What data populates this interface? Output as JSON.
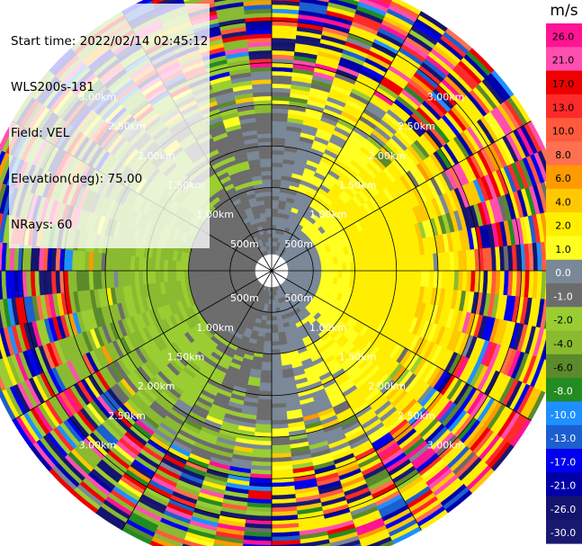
{
  "header": {
    "start_time": "Start time: 2022/02/14 02:45:12",
    "instrument": "WLS200s-181",
    "field": "Field: VEL",
    "elevation": "Elevation(deg): 75.00",
    "nrays": "NRays: 60"
  },
  "chart_data": {
    "type": "heatmap",
    "projection": "polar",
    "field": "VEL",
    "units": "m/s",
    "n_rays": 60,
    "range_rings": [
      "500m",
      "1.00km",
      "1.50km",
      "2.00km",
      "2.50km",
      "3.00km"
    ],
    "range_rings_km": [
      0.5,
      1.0,
      1.5,
      2.0,
      2.5,
      3.0
    ],
    "max_range_km": 3.6,
    "spokes_deg": [
      0,
      30,
      60,
      90,
      120,
      150,
      180,
      210,
      240,
      270,
      300,
      330
    ],
    "colorbar": {
      "title": "m/s",
      "tick_labels": [
        "26.0",
        "21.0",
        "17.0",
        "13.0",
        "10.0",
        "8.0",
        "6.0",
        "4.0",
        "2.0",
        "1.0",
        "0.0",
        "-1.0",
        "-2.0",
        "-4.0",
        "-6.0",
        "-8.0",
        "-10.0",
        "-13.0",
        "-17.0",
        "-21.0",
        "-26.0",
        "-30.0"
      ],
      "levels": [
        {
          "min": 26,
          "max": 30,
          "color": "#ff1493"
        },
        {
          "min": 21,
          "max": 26,
          "color": "#ff4fb0"
        },
        {
          "min": 17,
          "max": 21,
          "color": "#ee0000"
        },
        {
          "min": 13,
          "max": 17,
          "color": "#ff2a2a"
        },
        {
          "min": 10,
          "max": 13,
          "color": "#ff5a3c"
        },
        {
          "min": 8,
          "max": 10,
          "color": "#ff7050"
        },
        {
          "min": 6,
          "max": 8,
          "color": "#ff9a00"
        },
        {
          "min": 4,
          "max": 6,
          "color": "#ffc800"
        },
        {
          "min": 2,
          "max": 4,
          "color": "#ffee00"
        },
        {
          "min": 1,
          "max": 2,
          "color": "#ffff20"
        },
        {
          "min": 0,
          "max": 1,
          "color": "#7a8898"
        },
        {
          "min": -1,
          "max": 0,
          "color": "#6c6c6c"
        },
        {
          "min": -2,
          "max": -1,
          "color": "#9acd32"
        },
        {
          "min": -4,
          "max": -2,
          "color": "#8aba30"
        },
        {
          "min": -6,
          "max": -4,
          "color": "#5a8a2a"
        },
        {
          "min": -8,
          "max": -6,
          "color": "#228b22"
        },
        {
          "min": -10,
          "max": -8,
          "color": "#1e90ff"
        },
        {
          "min": -13,
          "max": -10,
          "color": "#1c5fd0"
        },
        {
          "min": -17,
          "max": -13,
          "color": "#0000ee"
        },
        {
          "min": -21,
          "max": -17,
          "color": "#0000aa"
        },
        {
          "min": -26,
          "max": -21,
          "color": "#14146e"
        },
        {
          "min": -30,
          "max": -26,
          "color": "#191970"
        }
      ]
    }
  }
}
